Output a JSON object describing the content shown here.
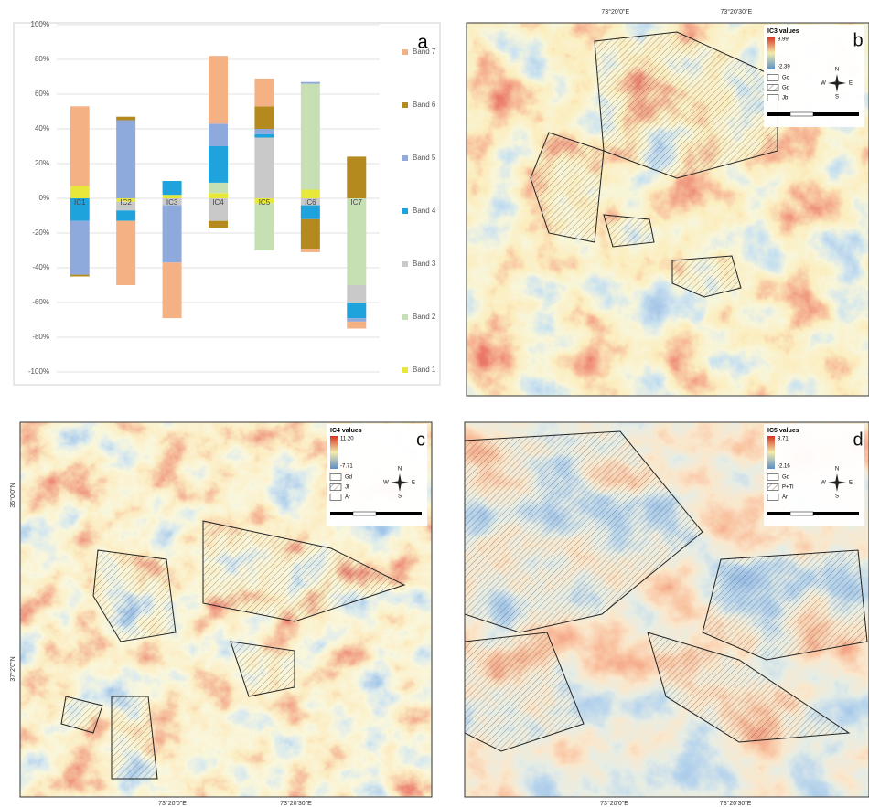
{
  "chart_data": {
    "type": "bar",
    "stacked": true,
    "panel_label": "a",
    "categories": [
      "IC1",
      "IC2",
      "IC3",
      "IC4",
      "IC5",
      "IC6",
      "IC7"
    ],
    "series": [
      {
        "name": "Band 1",
        "color": "#e8e83a",
        "values": [
          7,
          -2,
          2,
          3,
          -3,
          5,
          0
        ]
      },
      {
        "name": "Band 2",
        "color": "#c6e0b4",
        "values": [
          0,
          0,
          0,
          6,
          -27,
          61,
          -50
        ]
      },
      {
        "name": "Band 3",
        "color": "#c9c9c9",
        "values": [
          0,
          -5,
          -4,
          -13,
          35,
          -4,
          -10
        ]
      },
      {
        "name": "Band 4",
        "color": "#1fa3dc",
        "values": [
          -13,
          -6,
          8,
          21,
          2,
          -8,
          -9
        ]
      },
      {
        "name": "Band 5",
        "color": "#8eaadc",
        "values": [
          -31,
          45,
          -33,
          13,
          3,
          1,
          -2
        ]
      },
      {
        "name": "Band 6",
        "color": "#b48a1e",
        "values": [
          -1,
          2,
          0,
          -4,
          13,
          -17,
          24
        ]
      },
      {
        "name": "Band 7",
        "color": "#f4b183",
        "values": [
          46,
          -37,
          -32,
          39,
          16,
          -2,
          -4
        ]
      }
    ],
    "ylim": [
      -100,
      100
    ],
    "yticks": [
      {
        "value": -100,
        "label": "-100%"
      },
      {
        "value": -80,
        "label": "-80%"
      },
      {
        "value": -60,
        "label": "-60%"
      },
      {
        "value": -40,
        "label": "-40%"
      },
      {
        "value": -20,
        "label": "-20%"
      },
      {
        "value": 0,
        "label": "0%"
      },
      {
        "value": 20,
        "label": "20%"
      },
      {
        "value": 40,
        "label": "40%"
      },
      {
        "value": 60,
        "label": "60%"
      },
      {
        "value": 80,
        "label": "80%"
      },
      {
        "value": 100,
        "label": "100%"
      }
    ],
    "grid": true
  },
  "maps": [
    {
      "panel_label": "b",
      "legend_title": "IC3 values",
      "max_label": "8.99",
      "min_label": "-2.39",
      "units": [
        "Gc",
        "Gd",
        "Jb"
      ],
      "compass": [
        "N",
        "E",
        "S",
        "W"
      ],
      "top_labels": [
        "73°20'0\"E",
        "73°20'30\"E"
      ]
    },
    {
      "panel_label": "c",
      "legend_title": "IC4 values",
      "max_label": "11.20",
      "min_label": "-7.71",
      "units": [
        "Gd",
        "Jl",
        "Ar"
      ],
      "compass": [
        "N",
        "E",
        "S",
        "W"
      ],
      "bottom_labels": [
        "73°20'0\"E",
        "73°20'30\"E"
      ],
      "side_labels": [
        "35°0'0\"N",
        "37°2'0\"N"
      ]
    },
    {
      "panel_label": "d",
      "legend_title": "IC5 values",
      "max_label": "8.71",
      "min_label": "-2.16",
      "units": [
        "Gd",
        "P+Tl",
        "Ar"
      ],
      "compass": [
        "N",
        "E",
        "S",
        "W"
      ],
      "bottom_labels": [
        "73°20'0\"E",
        "73°20'30\"E"
      ]
    }
  ]
}
